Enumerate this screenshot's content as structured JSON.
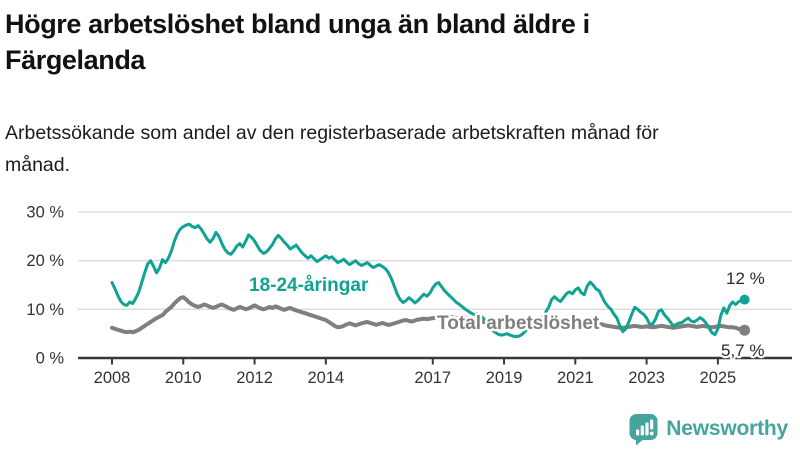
{
  "header": {
    "title": "Högre arbetslöshet bland unga än bland äldre i Färgelanda",
    "subtitle": "Arbetssökande som andel av den registerbaserade arbetskraften månad för månad."
  },
  "chart_data": {
    "type": "line",
    "title": "Högre arbetslöshet bland unga än bland äldre i Färgelanda",
    "x_unit": "month",
    "x_start_year": 2008,
    "x_tick_labels": [
      "2008",
      "2010",
      "2012",
      "2014",
      "2017",
      "2019",
      "2021",
      "2023",
      "2025"
    ],
    "x_tick_years": [
      2008,
      2010,
      2012,
      2014,
      2017,
      2019,
      2021,
      2023,
      2025
    ],
    "y_tick_labels": [
      "0 %",
      "10 %",
      "20 %",
      "30 %"
    ],
    "y_tick_values": [
      0,
      10,
      20,
      30
    ],
    "ylim": [
      0,
      30
    ],
    "grid": true,
    "legend_position": "inline-labels",
    "series": [
      {
        "name": "Total arbetslöshet",
        "color": "#7F7F7F",
        "end_label": "5,7 %",
        "end_value": 5.7,
        "values": [
          6.2,
          6.0,
          5.8,
          5.6,
          5.4,
          5.3,
          5.4,
          5.3,
          5.5,
          5.8,
          6.2,
          6.6,
          7.0,
          7.4,
          7.8,
          8.2,
          8.5,
          8.8,
          9.5,
          10.0,
          10.5,
          11.2,
          11.8,
          12.3,
          12.5,
          12.0,
          11.4,
          11.0,
          10.7,
          10.5,
          10.7,
          11.0,
          10.8,
          10.5,
          10.3,
          10.5,
          10.8,
          11.0,
          10.7,
          10.4,
          10.1,
          9.9,
          10.2,
          10.5,
          10.3,
          10.0,
          10.2,
          10.5,
          10.8,
          10.5,
          10.2,
          10.0,
          10.2,
          10.5,
          10.3,
          10.6,
          10.4,
          10.1,
          9.9,
          10.1,
          10.3,
          10.0,
          9.8,
          9.6,
          9.4,
          9.2,
          9.0,
          8.8,
          8.6,
          8.4,
          8.2,
          8.0,
          7.8,
          7.4,
          7.0,
          6.6,
          6.3,
          6.4,
          6.6,
          6.9,
          7.1,
          6.9,
          6.7,
          6.9,
          7.1,
          7.3,
          7.4,
          7.2,
          7.0,
          6.8,
          7.0,
          7.2,
          7.0,
          6.8,
          6.9,
          7.1,
          7.3,
          7.5,
          7.7,
          7.8,
          7.6,
          7.5,
          7.7,
          7.9,
          8.0,
          8.1,
          8.0,
          8.1,
          8.2,
          8.3,
          8.2,
          8.1,
          8.2,
          8.3,
          8.4,
          8.3,
          8.2,
          8.1,
          8.0,
          8.1,
          8.2,
          8.1,
          8.0,
          7.8,
          7.6,
          7.4,
          7.2,
          7.0,
          6.9,
          6.8,
          6.7,
          6.6,
          6.5,
          6.4,
          6.3,
          6.2,
          6.2,
          6.3,
          6.2,
          6.1,
          6.2,
          6.3,
          6.4,
          6.5,
          6.6,
          6.8,
          7.2,
          7.6,
          7.9,
          8.0,
          7.9,
          7.8,
          7.9,
          8.0,
          7.9,
          7.8,
          7.9,
          8.0,
          7.8,
          7.6,
          7.5,
          7.4,
          7.3,
          7.2,
          7.0,
          6.9,
          6.7,
          6.6,
          6.5,
          6.4,
          6.3,
          6.2,
          6.2,
          6.3,
          6.4,
          6.5,
          6.6,
          6.5,
          6.4,
          6.4,
          6.5,
          6.4,
          6.3,
          6.4,
          6.5,
          6.6,
          6.5,
          6.4,
          6.3,
          6.2,
          6.3,
          6.4,
          6.5,
          6.6,
          6.7,
          6.6,
          6.5,
          6.4,
          6.5,
          6.6,
          6.5,
          6.4,
          6.3,
          6.4,
          6.5,
          6.6,
          6.5,
          6.4,
          6.3,
          6.3,
          6.2,
          6.0,
          5.8,
          5.7
        ]
      },
      {
        "name": "18-24-åringar",
        "color": "#10A292",
        "end_label": "12 %",
        "end_value": 12,
        "values": [
          15.5,
          14.2,
          12.8,
          11.6,
          11.0,
          10.8,
          11.5,
          11.2,
          12.3,
          13.5,
          15.5,
          17.5,
          19.3,
          20.0,
          18.8,
          17.5,
          18.5,
          20.2,
          19.6,
          20.5,
          22.0,
          24.0,
          25.5,
          26.5,
          27.0,
          27.3,
          27.5,
          27.0,
          26.8,
          27.2,
          26.5,
          25.5,
          24.5,
          23.8,
          24.5,
          25.8,
          25.0,
          23.5,
          22.3,
          21.6,
          21.3,
          22.0,
          23.0,
          23.5,
          22.8,
          24.0,
          25.3,
          24.8,
          24.0,
          23.0,
          22.0,
          21.5,
          21.8,
          22.5,
          23.3,
          24.5,
          25.2,
          24.6,
          23.8,
          23.2,
          22.4,
          22.8,
          23.2,
          22.4,
          21.6,
          21.0,
          20.5,
          21.0,
          20.4,
          19.8,
          20.2,
          20.6,
          21.0,
          20.5,
          20.8,
          20.2,
          19.6,
          19.9,
          20.3,
          19.7,
          19.2,
          19.6,
          20.0,
          19.4,
          19.0,
          19.3,
          19.6,
          19.0,
          18.6,
          18.9,
          19.2,
          18.8,
          18.4,
          17.6,
          16.4,
          14.8,
          13.2,
          12.0,
          11.4,
          11.8,
          12.4,
          11.9,
          11.3,
          11.8,
          12.5,
          13.1,
          12.7,
          13.3,
          14.4,
          15.2,
          15.5,
          14.6,
          13.8,
          13.2,
          12.6,
          12.0,
          11.4,
          11.0,
          10.5,
          10.0,
          9.6,
          9.2,
          8.9,
          9.1,
          8.7,
          8.2,
          7.4,
          6.6,
          5.8,
          5.3,
          4.9,
          4.7,
          4.8,
          5.0,
          4.7,
          4.5,
          4.4,
          4.5,
          4.8,
          5.4,
          6.0,
          6.6,
          7.0,
          7.4,
          7.8,
          8.4,
          9.4,
          10.4,
          12.0,
          12.6,
          12.0,
          11.6,
          12.4,
          13.2,
          13.6,
          13.2,
          14.0,
          14.4,
          13.4,
          13.0,
          14.8,
          15.6,
          15.0,
          14.2,
          13.8,
          12.6,
          11.4,
          10.6,
          10.0,
          9.0,
          8.2,
          6.6,
          5.4,
          6.0,
          7.4,
          9.0,
          10.4,
          10.0,
          9.4,
          9.0,
          8.2,
          7.0,
          6.9,
          8.0,
          9.6,
          9.9,
          8.9,
          8.2,
          7.4,
          6.6,
          6.9,
          7.2,
          7.3,
          7.8,
          8.2,
          7.6,
          7.4,
          7.8,
          8.3,
          7.9,
          7.2,
          6.2,
          5.2,
          4.8,
          6.0,
          8.8,
          10.3,
          9.2,
          10.8,
          11.5,
          11.0,
          11.6,
          11.8,
          12.0
        ]
      }
    ],
    "style": {
      "grid_color": "#DBDBDB",
      "axis_color": "#383838",
      "tick_text_color": "#333333"
    }
  },
  "branding": {
    "logo_text": "Newsworthy",
    "logo_color": "#44A49E",
    "logo_icon": "chart-speech-bubble-icon"
  }
}
